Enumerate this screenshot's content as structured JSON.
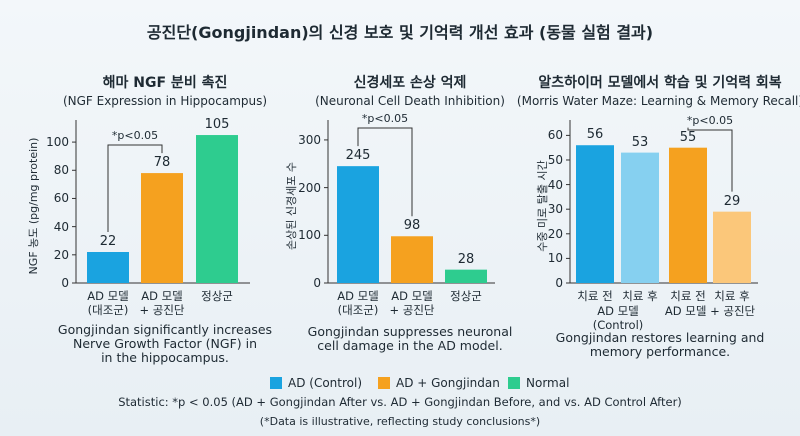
{
  "title": "공진단(Gongjindan)의 신경 보호 및 기억력 개선 효과 (동물 실험 결과)",
  "chart_data": [
    {
      "type": "bar",
      "title": "해마 NGF 분비 촉진",
      "subtitle": "(NGF Expression in Hippocampus)",
      "ylabel": "NGF 농도 (pg/mg protein)",
      "categories": [
        "AD 모델\n(대조군)",
        "AD 모델\n+ 공진단",
        "정상군"
      ],
      "values": [
        22,
        78,
        105
      ],
      "colors": [
        "#1aa3e0",
        "#f5a11f",
        "#2ecc8f"
      ],
      "ylim": [
        0,
        110
      ],
      "yticks": [
        0,
        20,
        40,
        60,
        80,
        100
      ],
      "annotation": "*p<0.05",
      "caption": "Gongjindan significantly increases\nNerve Growth Factor (NGF) in\nin the hippocampus."
    },
    {
      "type": "bar",
      "title": "신경세포 손상 억제",
      "subtitle": "(Neuronal Cell Death Inhibition)",
      "ylabel": "손상된 신경세포 수",
      "categories": [
        "AD 모델\n(대조군)",
        "AD 모델\n+ 공진단",
        "정상군"
      ],
      "values": [
        245,
        98,
        28
      ],
      "colors": [
        "#1aa3e0",
        "#f5a11f",
        "#2ecc8f"
      ],
      "ylim": [
        0,
        325
      ],
      "yticks": [
        0,
        100,
        200,
        300
      ],
      "annotation": "*p<0.05",
      "caption": "Gongjindan suppresses neuronal\ncell damage in the AD model."
    },
    {
      "type": "bar",
      "title": "알츠하이머 모델에서 학습 및 기억력 회복",
      "subtitle": "(Morris Water Maze: Learning & Memory Recall)",
      "ylabel": "수중 미로 탈출 시간",
      "categories": [
        "치료 전",
        "치료 후",
        "치료 전",
        "치료 후"
      ],
      "groups": [
        "AD 모델\n(Control)",
        "AD 모델 + 공진단"
      ],
      "values": [
        56,
        53,
        55,
        29
      ],
      "colors": [
        "#1aa3e0",
        "#86d0f0",
        "#f5a11f",
        "#fbc77a"
      ],
      "ylim": [
        0,
        63
      ],
      "yticks": [
        0,
        10,
        20,
        30,
        40,
        50,
        60
      ],
      "annotation": "*p<0.05",
      "caption": "Gongjindan restores learning and\nmemory performance."
    }
  ],
  "legend": [
    {
      "name": "AD (Control)",
      "color": "#1aa3e0"
    },
    {
      "name": "AD + Gongjindan",
      "color": "#f5a11f"
    },
    {
      "name": "Normal",
      "color": "#2ecc8f"
    }
  ],
  "statistic": "Statistic: *p < 0.05 (AD + Gongjindan After vs. AD + Gongjindan Before, and vs. AD Control After)",
  "footnote": "(*Data is illustrative, reflecting study conclusions*)"
}
